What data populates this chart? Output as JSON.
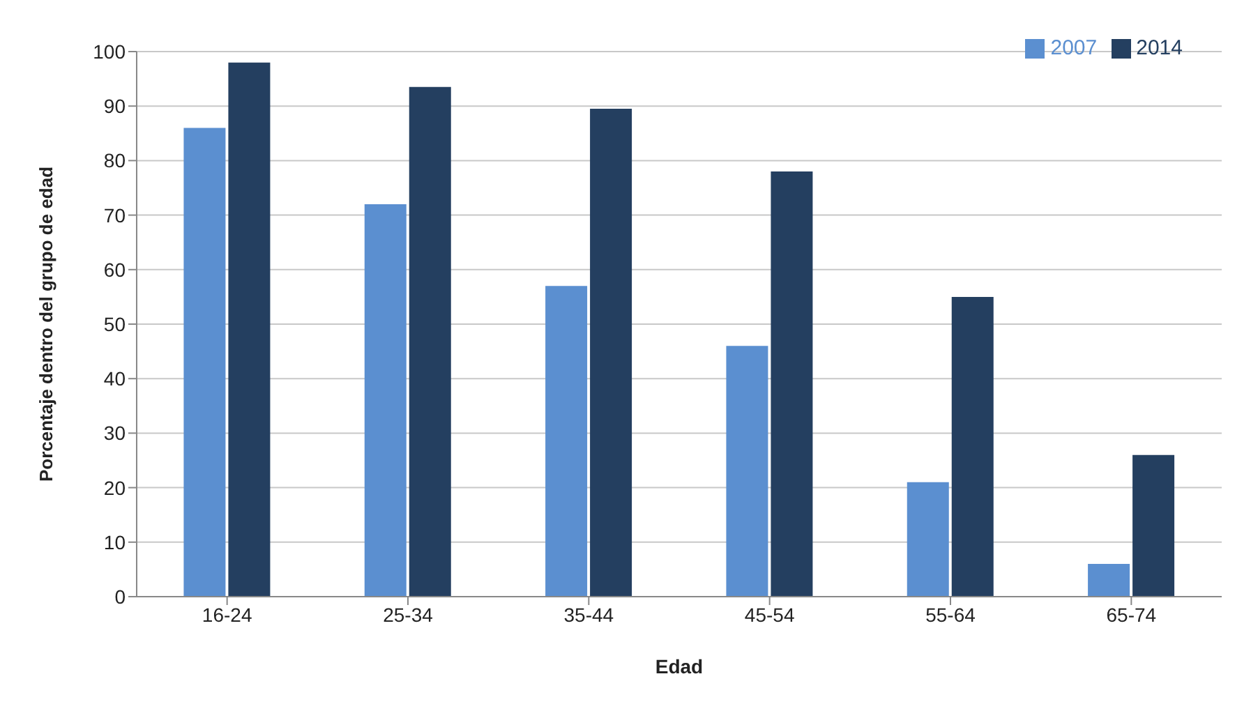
{
  "chart_data": {
    "type": "bar",
    "xlabel": "Edad",
    "ylabel": "Porcentaje dentro del grupo de edad",
    "categories": [
      "16-24",
      "25-34",
      "35-44",
      "45-54",
      "55-64",
      "65-74"
    ],
    "series": [
      {
        "name": "2007",
        "color": "#5b8fd0",
        "values": [
          86,
          72,
          57,
          46,
          21,
          6
        ]
      },
      {
        "name": "2014",
        "color": "#243f60",
        "values": [
          98,
          93.5,
          89.5,
          78,
          55,
          26
        ]
      }
    ],
    "ylim": [
      0,
      100
    ],
    "yticks": [
      0,
      10,
      20,
      30,
      40,
      50,
      60,
      70,
      80,
      90,
      100
    ],
    "grid": "y",
    "legend": "top right"
  }
}
